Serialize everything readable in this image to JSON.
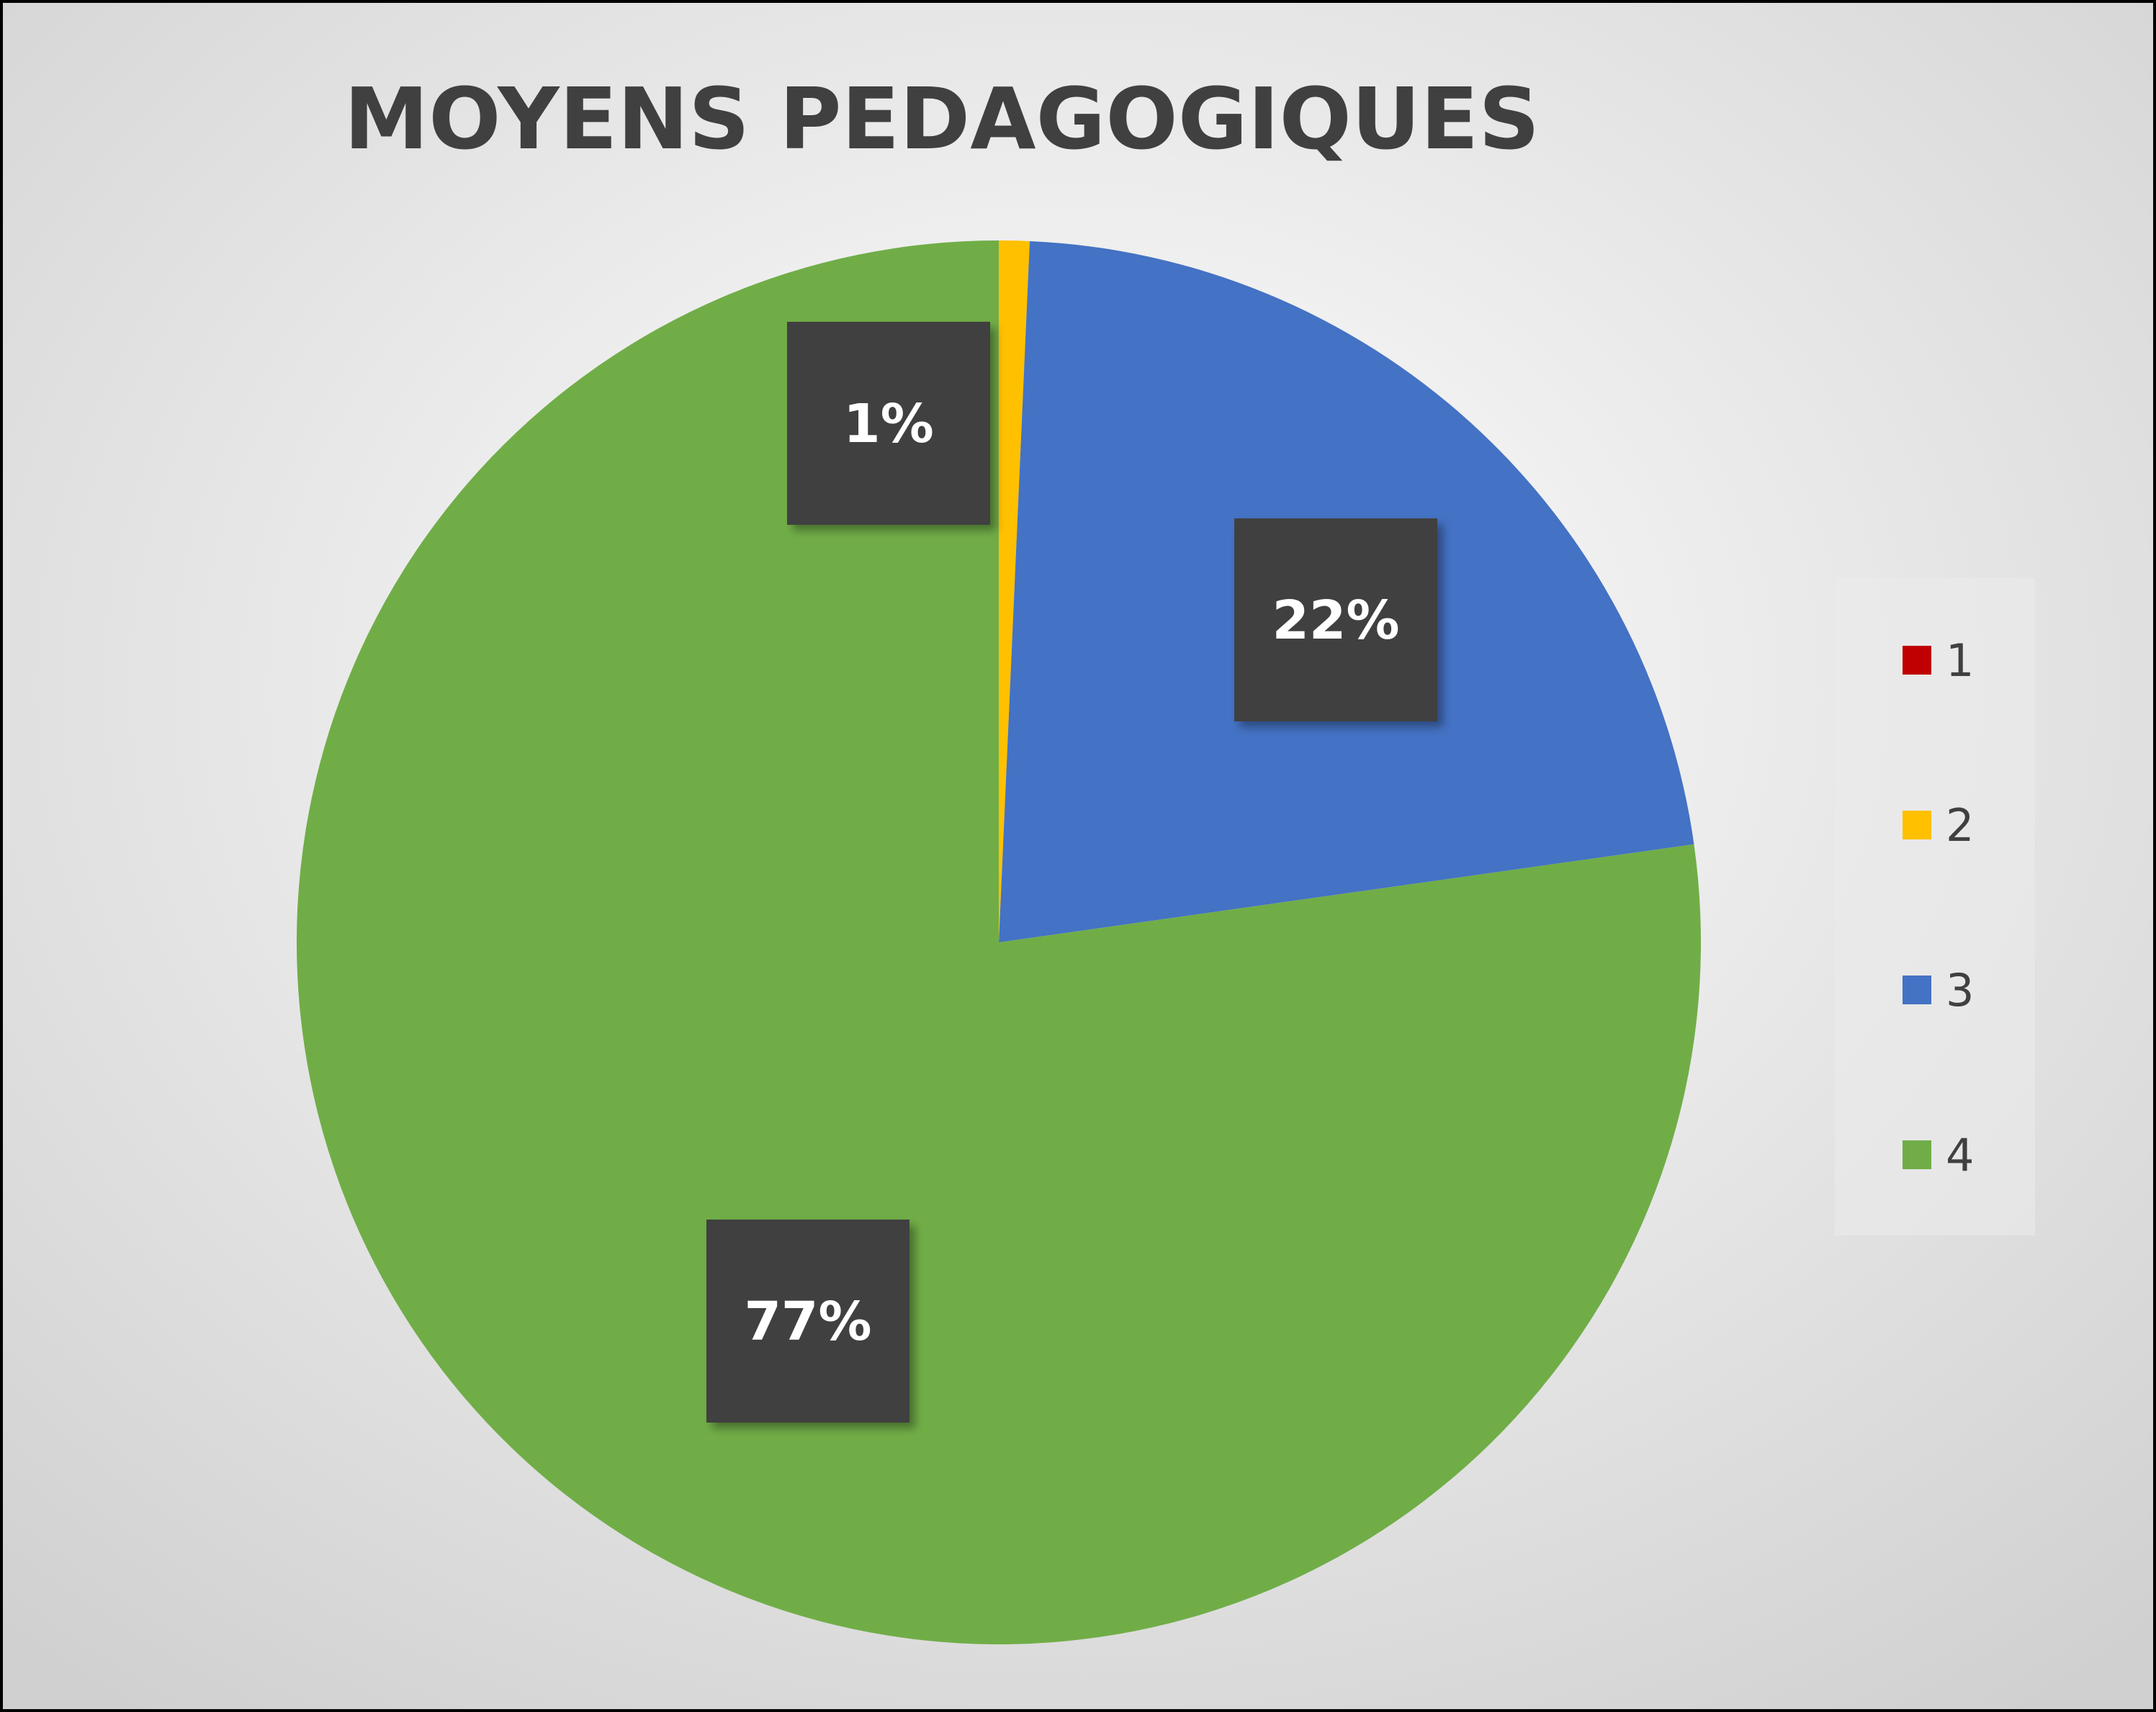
{
  "chart_data": {
    "type": "pie",
    "title": "MOYENS PEDAGOGIQUES",
    "categories": [
      "1",
      "2",
      "3",
      "4"
    ],
    "values": [
      0,
      0.7,
      22,
      77
    ],
    "data_labels": [
      "",
      "1%",
      "22%",
      "77%"
    ],
    "colors": [
      "#c00000",
      "#ffc000",
      "#4472c4",
      "#70ad47"
    ],
    "legend_position": "right",
    "start_angle_deg": 0,
    "direction": "clockwise"
  },
  "style": {
    "label_box_color": "#404040",
    "background_gradient": [
      "#ffffff",
      "#d0d0d0"
    ]
  }
}
